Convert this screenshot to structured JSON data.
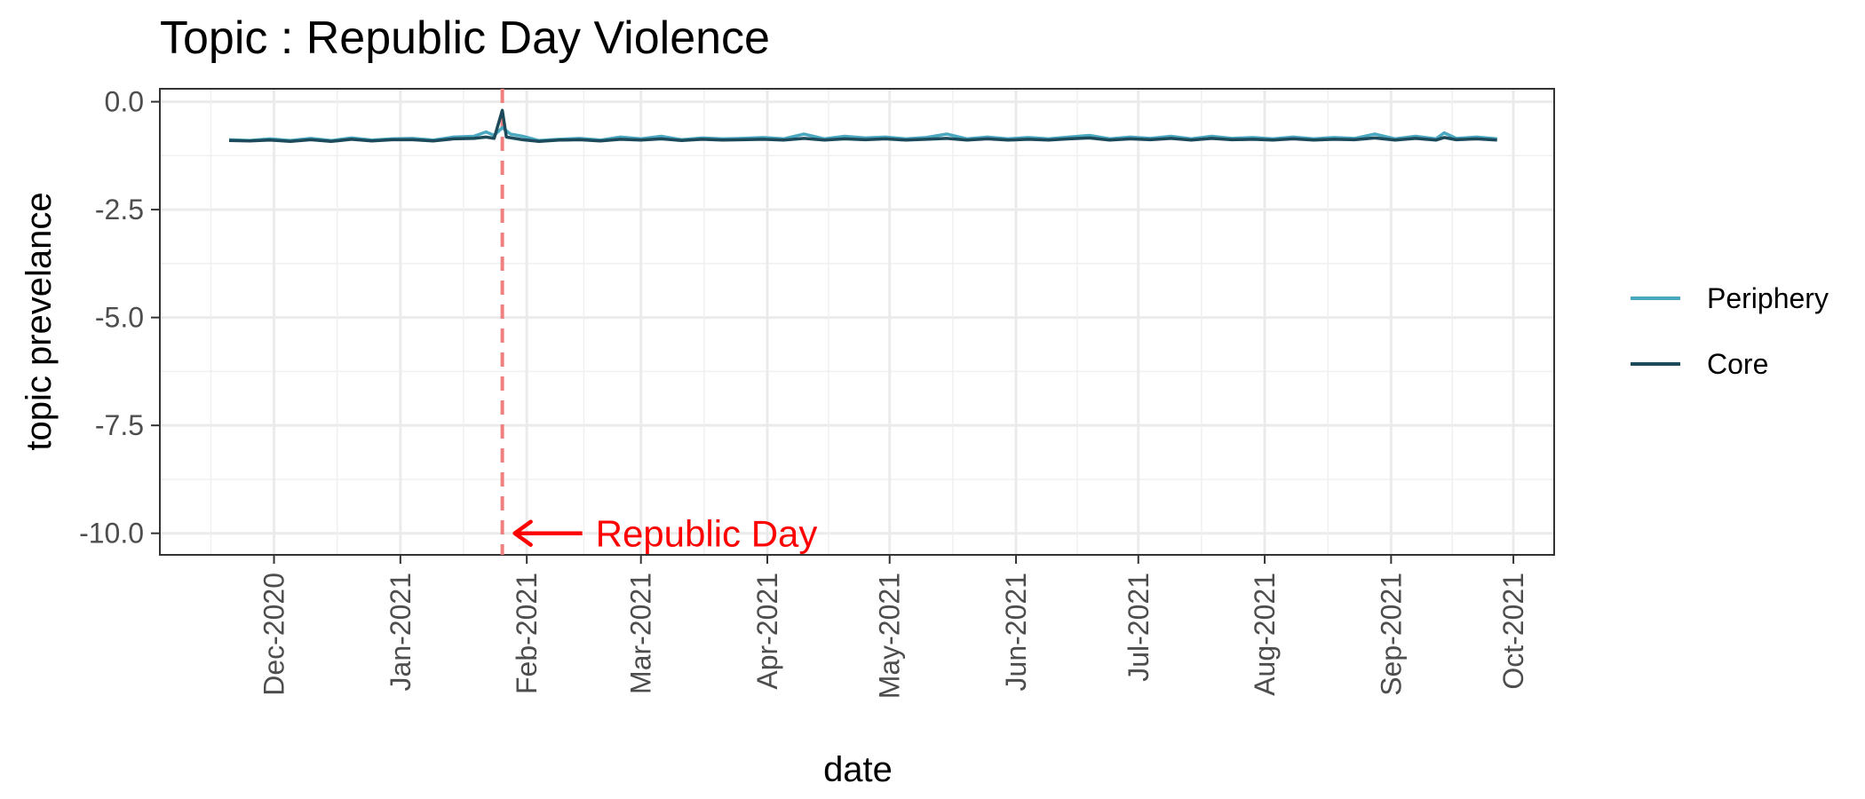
{
  "chart_data": {
    "type": "line",
    "title": "Topic : Republic Day Violence",
    "xlabel": "date",
    "ylabel": "topic prevelance",
    "x_ticks": [
      "Dec-2020",
      "Jan-2021",
      "Feb-2021",
      "Mar-2021",
      "Apr-2021",
      "May-2021",
      "Jun-2021",
      "Jul-2021",
      "Aug-2021",
      "Sep-2021",
      "Oct-2021"
    ],
    "y_ticks": [
      "0.0",
      "-2.5",
      "-5.0",
      "-7.5",
      "-10.0"
    ],
    "xlim": [
      "2020-11-03",
      "2021-10-11"
    ],
    "ylim": [
      -10.5,
      0.3
    ],
    "grid": true,
    "legend_position": "right",
    "annotation": {
      "text": "Republic Day",
      "date": "2021-01-26",
      "color": "#ff0000",
      "line_color": "#f08080"
    },
    "series": [
      {
        "name": "Periphery",
        "color": "#4aa8c0",
        "points": [
          [
            "2020-11-20",
            -0.88
          ],
          [
            "2020-11-25",
            -0.9
          ],
          [
            "2020-11-30",
            -0.86
          ],
          [
            "2020-12-05",
            -0.9
          ],
          [
            "2020-12-10",
            -0.85
          ],
          [
            "2020-12-15",
            -0.9
          ],
          [
            "2020-12-20",
            -0.84
          ],
          [
            "2020-12-25",
            -0.89
          ],
          [
            "2020-12-30",
            -0.86
          ],
          [
            "2021-01-04",
            -0.85
          ],
          [
            "2021-01-09",
            -0.89
          ],
          [
            "2021-01-14",
            -0.82
          ],
          [
            "2021-01-19",
            -0.8
          ],
          [
            "2021-01-22",
            -0.7
          ],
          [
            "2021-01-24",
            -0.78
          ],
          [
            "2021-01-26",
            -0.6
          ],
          [
            "2021-01-28",
            -0.75
          ],
          [
            "2021-01-31",
            -0.8
          ],
          [
            "2021-02-04",
            -0.9
          ],
          [
            "2021-02-09",
            -0.87
          ],
          [
            "2021-02-14",
            -0.85
          ],
          [
            "2021-02-19",
            -0.89
          ],
          [
            "2021-02-24",
            -0.82
          ],
          [
            "2021-03-01",
            -0.86
          ],
          [
            "2021-03-06",
            -0.8
          ],
          [
            "2021-03-11",
            -0.88
          ],
          [
            "2021-03-16",
            -0.84
          ],
          [
            "2021-03-21",
            -0.86
          ],
          [
            "2021-03-26",
            -0.85
          ],
          [
            "2021-03-31",
            -0.83
          ],
          [
            "2021-04-05",
            -0.86
          ],
          [
            "2021-04-10",
            -0.75
          ],
          [
            "2021-04-15",
            -0.86
          ],
          [
            "2021-04-20",
            -0.8
          ],
          [
            "2021-04-25",
            -0.84
          ],
          [
            "2021-04-30",
            -0.82
          ],
          [
            "2021-05-05",
            -0.86
          ],
          [
            "2021-05-10",
            -0.83
          ],
          [
            "2021-05-15",
            -0.75
          ],
          [
            "2021-05-20",
            -0.86
          ],
          [
            "2021-05-25",
            -0.82
          ],
          [
            "2021-05-30",
            -0.86
          ],
          [
            "2021-06-04",
            -0.83
          ],
          [
            "2021-06-09",
            -0.86
          ],
          [
            "2021-06-14",
            -0.82
          ],
          [
            "2021-06-19",
            -0.78
          ],
          [
            "2021-06-24",
            -0.86
          ],
          [
            "2021-06-29",
            -0.82
          ],
          [
            "2021-07-04",
            -0.85
          ],
          [
            "2021-07-09",
            -0.8
          ],
          [
            "2021-07-14",
            -0.86
          ],
          [
            "2021-07-19",
            -0.8
          ],
          [
            "2021-07-24",
            -0.85
          ],
          [
            "2021-07-29",
            -0.83
          ],
          [
            "2021-08-03",
            -0.86
          ],
          [
            "2021-08-08",
            -0.82
          ],
          [
            "2021-08-13",
            -0.86
          ],
          [
            "2021-08-18",
            -0.83
          ],
          [
            "2021-08-23",
            -0.85
          ],
          [
            "2021-08-28",
            -0.75
          ],
          [
            "2021-09-02",
            -0.86
          ],
          [
            "2021-09-07",
            -0.8
          ],
          [
            "2021-09-12",
            -0.86
          ],
          [
            "2021-09-14",
            -0.72
          ],
          [
            "2021-09-17",
            -0.85
          ],
          [
            "2021-09-22",
            -0.82
          ],
          [
            "2021-09-27",
            -0.86
          ]
        ]
      },
      {
        "name": "Core",
        "color": "#1c4a5a",
        "points": [
          [
            "2020-11-20",
            -0.9
          ],
          [
            "2020-11-25",
            -0.91
          ],
          [
            "2020-11-30",
            -0.89
          ],
          [
            "2020-12-05",
            -0.92
          ],
          [
            "2020-12-10",
            -0.88
          ],
          [
            "2020-12-15",
            -0.92
          ],
          [
            "2020-12-20",
            -0.87
          ],
          [
            "2020-12-25",
            -0.91
          ],
          [
            "2020-12-30",
            -0.88
          ],
          [
            "2021-01-04",
            -0.88
          ],
          [
            "2021-01-09",
            -0.91
          ],
          [
            "2021-01-14",
            -0.86
          ],
          [
            "2021-01-19",
            -0.85
          ],
          [
            "2021-01-22",
            -0.82
          ],
          [
            "2021-01-24",
            -0.85
          ],
          [
            "2021-01-26",
            -0.2
          ],
          [
            "2021-01-27",
            -0.82
          ],
          [
            "2021-01-31",
            -0.88
          ],
          [
            "2021-02-04",
            -0.92
          ],
          [
            "2021-02-09",
            -0.89
          ],
          [
            "2021-02-14",
            -0.88
          ],
          [
            "2021-02-19",
            -0.91
          ],
          [
            "2021-02-24",
            -0.87
          ],
          [
            "2021-03-01",
            -0.89
          ],
          [
            "2021-03-06",
            -0.86
          ],
          [
            "2021-03-11",
            -0.9
          ],
          [
            "2021-03-16",
            -0.87
          ],
          [
            "2021-03-21",
            -0.89
          ],
          [
            "2021-03-26",
            -0.88
          ],
          [
            "2021-03-31",
            -0.87
          ],
          [
            "2021-04-05",
            -0.89
          ],
          [
            "2021-04-10",
            -0.85
          ],
          [
            "2021-04-15",
            -0.89
          ],
          [
            "2021-04-20",
            -0.86
          ],
          [
            "2021-04-25",
            -0.88
          ],
          [
            "2021-04-30",
            -0.86
          ],
          [
            "2021-05-05",
            -0.89
          ],
          [
            "2021-05-10",
            -0.87
          ],
          [
            "2021-05-15",
            -0.85
          ],
          [
            "2021-05-20",
            -0.89
          ],
          [
            "2021-05-25",
            -0.86
          ],
          [
            "2021-05-30",
            -0.89
          ],
          [
            "2021-06-04",
            -0.87
          ],
          [
            "2021-06-09",
            -0.89
          ],
          [
            "2021-06-14",
            -0.86
          ],
          [
            "2021-06-19",
            -0.84
          ],
          [
            "2021-06-24",
            -0.89
          ],
          [
            "2021-06-29",
            -0.86
          ],
          [
            "2021-07-04",
            -0.88
          ],
          [
            "2021-07-09",
            -0.85
          ],
          [
            "2021-07-14",
            -0.89
          ],
          [
            "2021-07-19",
            -0.85
          ],
          [
            "2021-07-24",
            -0.88
          ],
          [
            "2021-07-29",
            -0.87
          ],
          [
            "2021-08-03",
            -0.89
          ],
          [
            "2021-08-08",
            -0.86
          ],
          [
            "2021-08-13",
            -0.89
          ],
          [
            "2021-08-18",
            -0.87
          ],
          [
            "2021-08-23",
            -0.88
          ],
          [
            "2021-08-28",
            -0.84
          ],
          [
            "2021-09-02",
            -0.89
          ],
          [
            "2021-09-07",
            -0.85
          ],
          [
            "2021-09-12",
            -0.89
          ],
          [
            "2021-09-14",
            -0.83
          ],
          [
            "2021-09-17",
            -0.88
          ],
          [
            "2021-09-22",
            -0.86
          ],
          [
            "2021-09-27",
            -0.89
          ]
        ]
      }
    ]
  }
}
